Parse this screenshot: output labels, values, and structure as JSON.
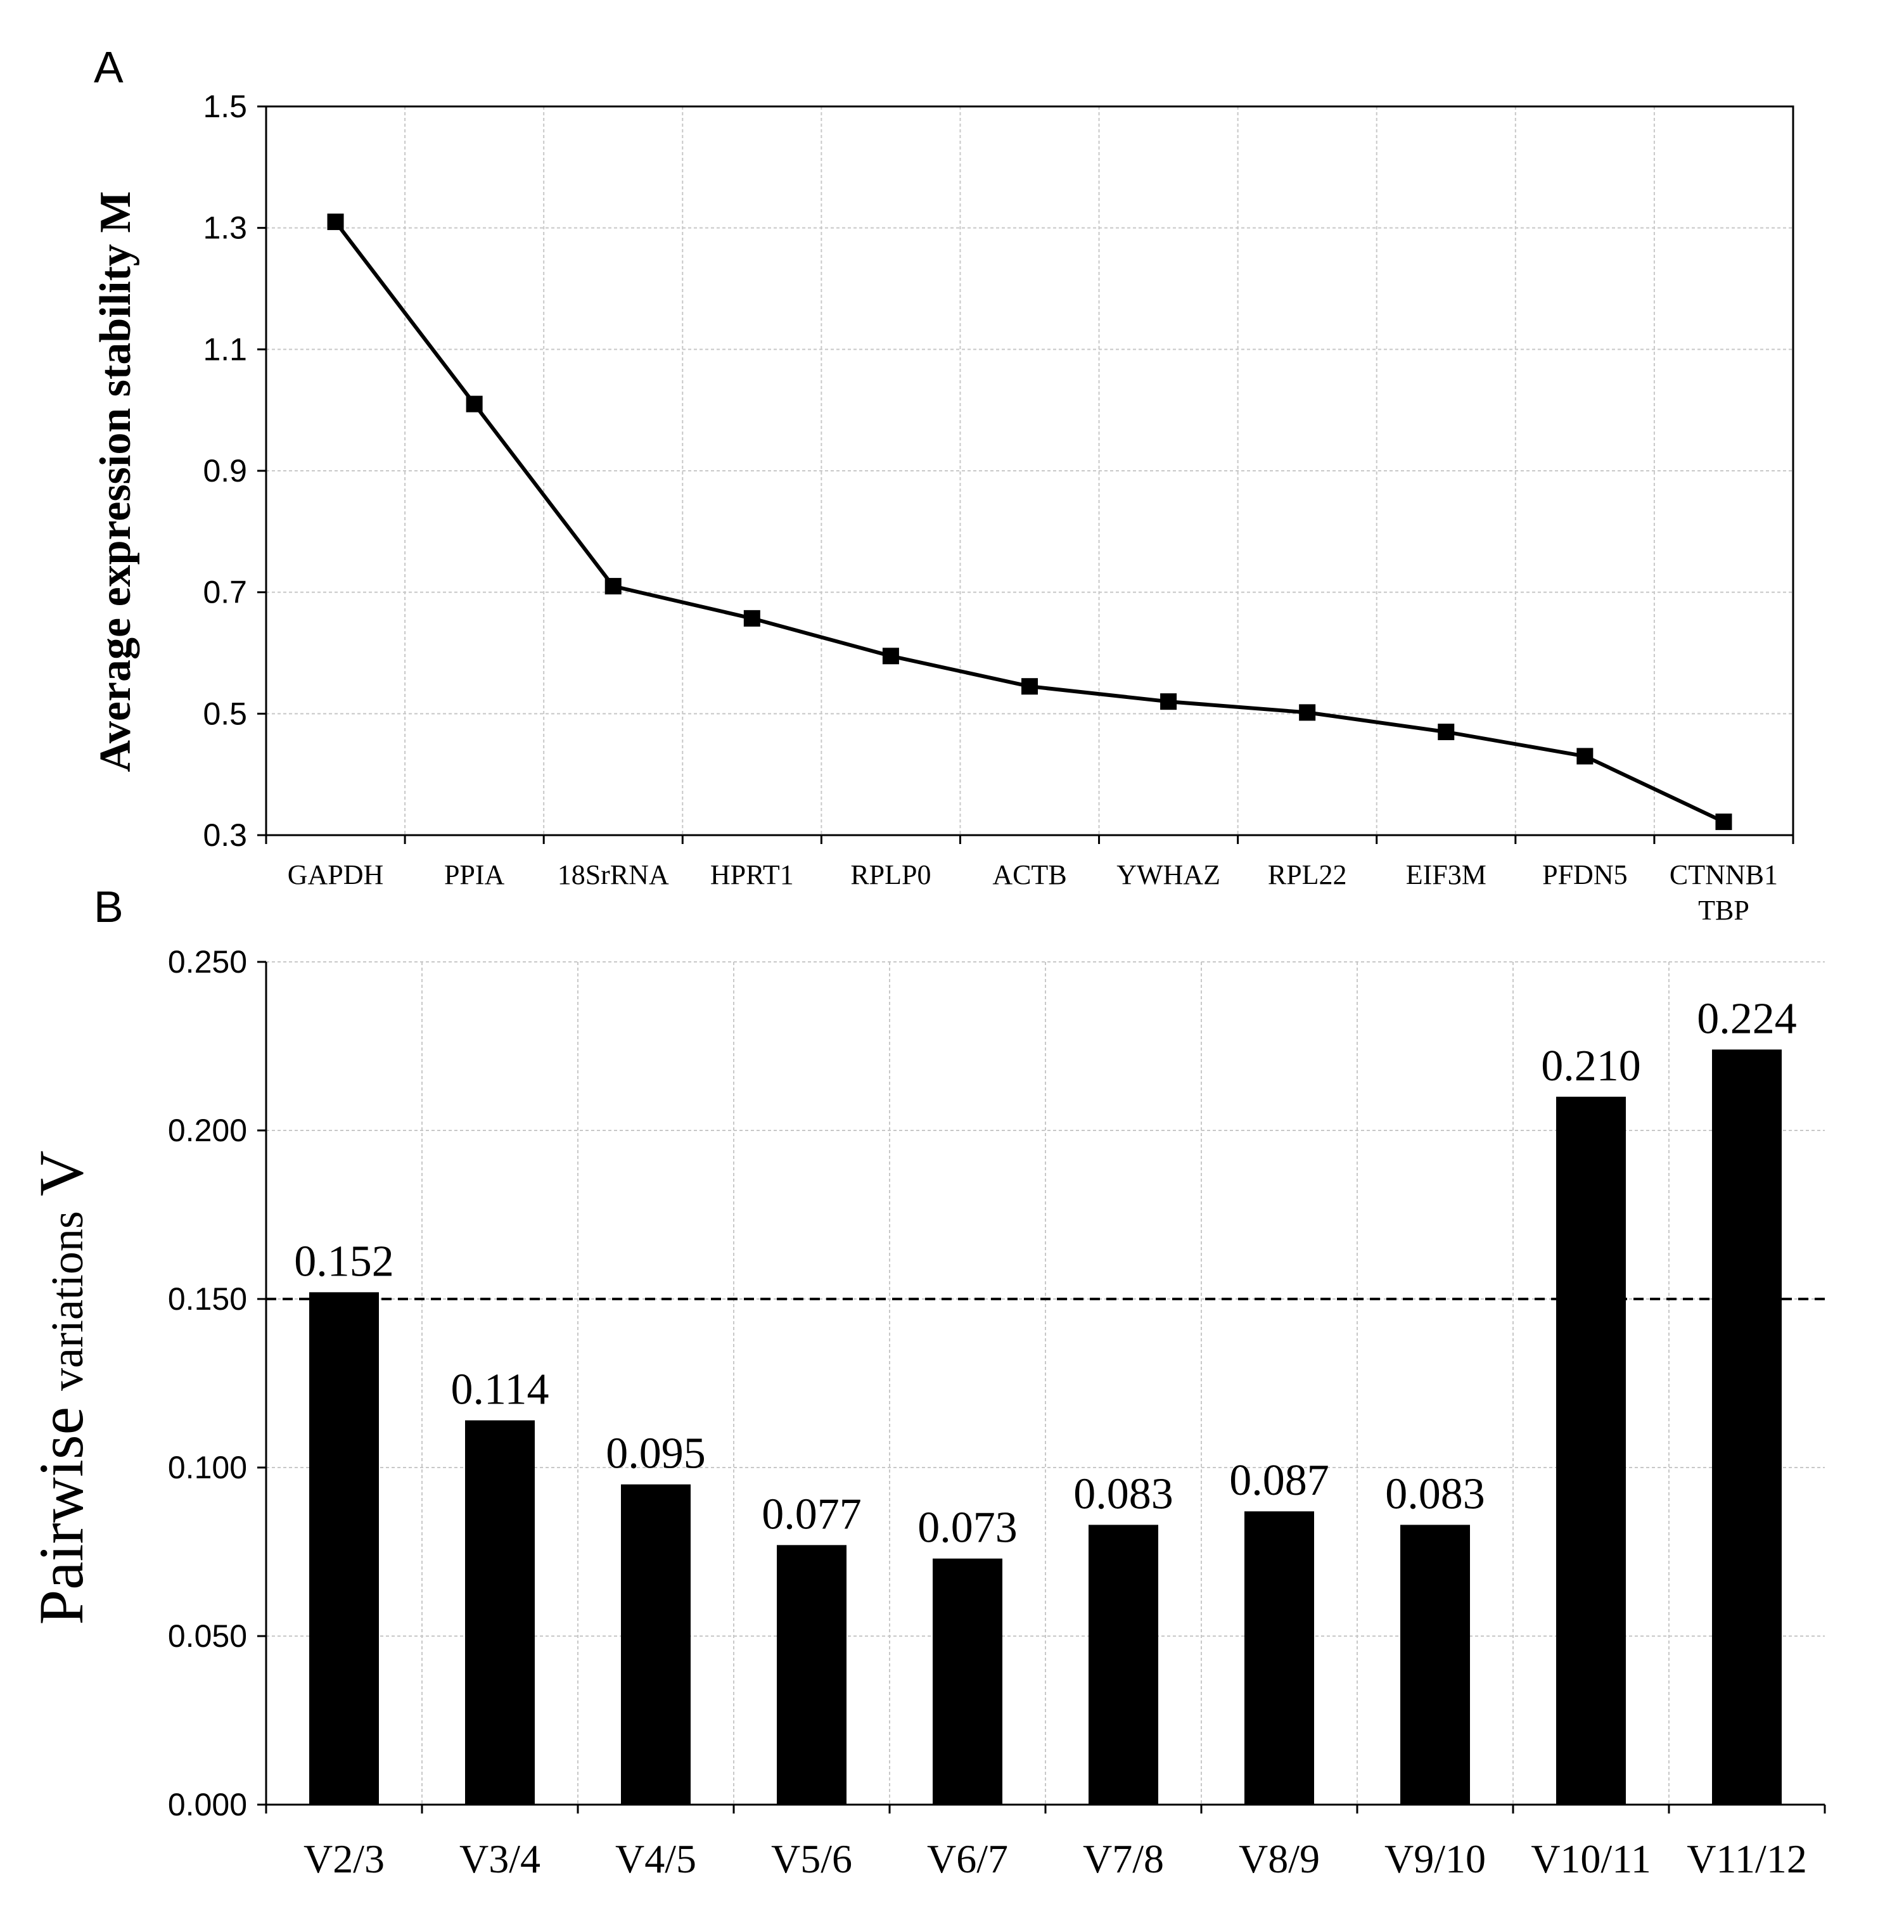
{
  "chart_data": [
    {
      "panel_label": "A",
      "type": "line",
      "title": "",
      "xlabel": "",
      "ylabel": "Average expression stability M",
      "ylim": [
        0.3,
        1.5
      ],
      "yticks": [
        "0.3",
        "0.5",
        "0.7",
        "0.9",
        "1.1",
        "1.3",
        "1.5"
      ],
      "grid": true,
      "categories": [
        "GAPDH",
        "PPIA",
        "18SrRNA",
        "HPRT1",
        "RPLP0",
        "ACTB",
        "YWHAZ",
        "RPL22",
        "EIF3M",
        "PFDN5",
        "CTNNB1\nTBP"
      ],
      "category_lines": [
        [
          "GAPDH"
        ],
        [
          "PPIA"
        ],
        [
          "18SrRNA"
        ],
        [
          "HPRT1"
        ],
        [
          "RPLP0"
        ],
        [
          "ACTB"
        ],
        [
          "YWHAZ"
        ],
        [
          "RPL22"
        ],
        [
          "EIF3M"
        ],
        [
          "PFDN5"
        ],
        [
          "CTNNB1",
          "TBP"
        ]
      ],
      "values": [
        1.31,
        1.01,
        0.71,
        0.657,
        0.595,
        0.545,
        0.52,
        0.502,
        0.47,
        0.43,
        0.322
      ],
      "marker": "square",
      "color": "#000000"
    },
    {
      "panel_label": "B",
      "type": "bar",
      "title": "",
      "xlabel": "",
      "ylabel": "Pairwise variations V",
      "ylabel_parts": [
        "Pairwise ",
        "variations",
        " V"
      ],
      "ylim": [
        0.0,
        0.25
      ],
      "yticks": [
        "0.000",
        "0.050",
        "0.100",
        "0.150",
        "0.200",
        "0.250"
      ],
      "grid": true,
      "categories": [
        "V2/3",
        "V3/4",
        "V4/5",
        "V5/6",
        "V6/7",
        "V7/8",
        "V8/9",
        "V9/10",
        "V10/11",
        "V11/12"
      ],
      "values": [
        0.152,
        0.114,
        0.095,
        0.077,
        0.073,
        0.083,
        0.087,
        0.083,
        0.21,
        0.224
      ],
      "data_labels": [
        "0.152",
        "0.114",
        "0.095",
        "0.077",
        "0.073",
        "0.083",
        "0.087",
        "0.083",
        "0.210",
        "0.224"
      ],
      "threshold": 0.15,
      "threshold_style": "dashed",
      "color": "#000000"
    }
  ]
}
